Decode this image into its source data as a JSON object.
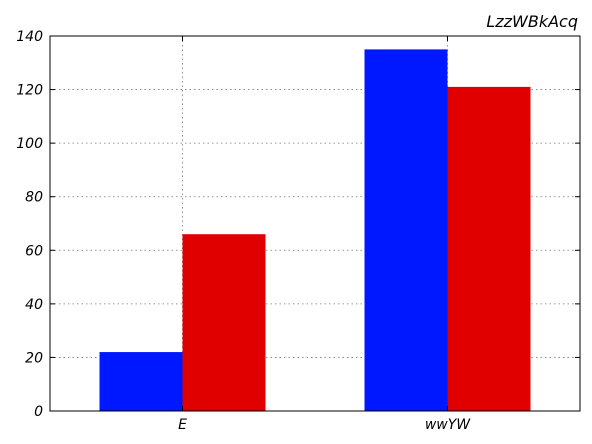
{
  "chart_data": {
    "type": "bar",
    "title": "LzzWBkAcq",
    "xlabel": "",
    "ylabel": "",
    "categories": [
      "E",
      "wwYW"
    ],
    "series": [
      {
        "values": [
          22,
          135
        ],
        "color": "#0018ff"
      },
      {
        "values": [
          66,
          121
        ],
        "color": "#e00000"
      }
    ],
    "ylim": [
      0,
      140
    ],
    "yticks": [
      0,
      20,
      40,
      60,
      80,
      100,
      120,
      140
    ],
    "grid": true,
    "legend": false
  }
}
